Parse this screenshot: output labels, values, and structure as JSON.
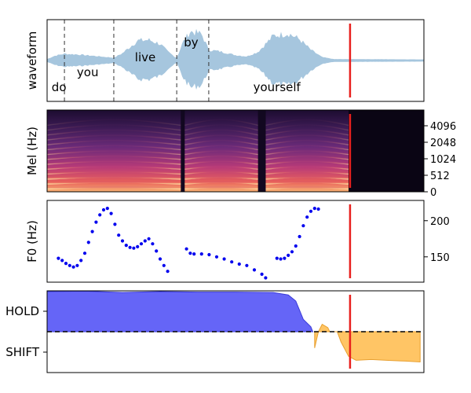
{
  "colors": {
    "waveform": "#a6c6de",
    "cursor": "#e8201e",
    "boundary": "#333333",
    "f0_points": "#0000ee",
    "hold_fill": "#6565f7",
    "hold_edge": "#3a3ad8",
    "shift_fill": "#ffc565",
    "shift_edge": "#e8a030"
  },
  "chart_data": [
    {
      "type": "area",
      "panel": "waveform",
      "ylabel": "waveform",
      "x_range": [
        0,
        1
      ],
      "words": [
        {
          "text": "do",
          "x": 0.012,
          "level": "low"
        },
        {
          "text": "you",
          "x": 0.079,
          "level": "mid"
        },
        {
          "text": "live",
          "x": 0.233,
          "level": "high"
        },
        {
          "text": "by",
          "x": 0.363,
          "level": "top"
        },
        {
          "text": "yourself",
          "x": 0.547,
          "level": "low"
        }
      ],
      "word_boundaries": [
        0.046,
        0.177,
        0.344,
        0.429
      ],
      "envelope": [
        [
          0.0,
          0.02
        ],
        [
          0.02,
          0.12
        ],
        [
          0.046,
          0.18
        ],
        [
          0.08,
          0.16
        ],
        [
          0.12,
          0.12
        ],
        [
          0.16,
          0.08
        ],
        [
          0.177,
          0.06
        ],
        [
          0.2,
          0.2
        ],
        [
          0.24,
          0.58
        ],
        [
          0.27,
          0.6
        ],
        [
          0.3,
          0.48
        ],
        [
          0.32,
          0.25
        ],
        [
          0.344,
          0.05
        ],
        [
          0.36,
          0.52
        ],
        [
          0.38,
          0.86
        ],
        [
          0.41,
          0.78
        ],
        [
          0.429,
          0.3
        ],
        [
          0.46,
          0.25
        ],
        [
          0.5,
          0.14
        ],
        [
          0.53,
          0.1
        ],
        [
          0.56,
          0.24
        ],
        [
          0.6,
          0.72
        ],
        [
          0.64,
          0.8
        ],
        [
          0.67,
          0.62
        ],
        [
          0.7,
          0.3
        ],
        [
          0.73,
          0.08
        ],
        [
          0.76,
          0.02
        ],
        [
          1.0,
          0.01
        ]
      ],
      "cursor_x": 0.804
    },
    {
      "type": "heatmap",
      "panel": "spectrogram",
      "ylabel": "Mel (Hz)",
      "x_range": [
        0,
        1
      ],
      "yticks": [
        "0",
        "512",
        "1024",
        "2048",
        "4096"
      ],
      "voiced_segments": [
        [
          0.0,
          0.355
        ],
        [
          0.365,
          0.56
        ],
        [
          0.58,
          0.8
        ]
      ],
      "cursor_x": 0.804
    },
    {
      "type": "scatter",
      "panel": "f0",
      "ylabel": "F0 (Hz)",
      "x_range": [
        0,
        1
      ],
      "y_range": [
        115,
        228
      ],
      "yticks": [
        150,
        200
      ],
      "series": [
        {
          "segment": 1,
          "points": [
            [
              0.03,
              148
            ],
            [
              0.04,
              145
            ],
            [
              0.05,
              141
            ],
            [
              0.06,
              138
            ],
            [
              0.07,
              136
            ],
            [
              0.08,
              138
            ],
            [
              0.09,
              145
            ],
            [
              0.1,
              155
            ],
            [
              0.11,
              170
            ],
            [
              0.12,
              185
            ],
            [
              0.13,
              198
            ],
            [
              0.14,
              208
            ],
            [
              0.15,
              215
            ],
            [
              0.16,
              217
            ],
            [
              0.17,
              210
            ],
            [
              0.18,
              195
            ],
            [
              0.19,
              180
            ],
            [
              0.2,
              172
            ],
            [
              0.21,
              166
            ],
            [
              0.22,
              163
            ],
            [
              0.23,
              162
            ],
            [
              0.24,
              164
            ],
            [
              0.25,
              168
            ],
            [
              0.26,
              172
            ],
            [
              0.27,
              175
            ],
            [
              0.28,
              168
            ],
            [
              0.29,
              158
            ],
            [
              0.3,
              147
            ],
            [
              0.31,
              138
            ],
            [
              0.32,
              130
            ]
          ]
        },
        {
          "segment": 2,
          "points": [
            [
              0.37,
              161
            ],
            [
              0.38,
              155
            ],
            [
              0.39,
              154
            ],
            [
              0.41,
              154
            ],
            [
              0.43,
              153
            ],
            [
              0.45,
              150
            ],
            [
              0.47,
              147
            ],
            [
              0.49,
              143
            ],
            [
              0.51,
              140
            ],
            [
              0.53,
              138
            ],
            [
              0.55,
              132
            ],
            [
              0.57,
              126
            ],
            [
              0.58,
              121
            ]
          ]
        },
        {
          "segment": 3,
          "points": [
            [
              0.61,
              148
            ],
            [
              0.62,
              147
            ],
            [
              0.63,
              148
            ],
            [
              0.64,
              152
            ],
            [
              0.65,
              157
            ],
            [
              0.66,
              165
            ],
            [
              0.67,
              178
            ],
            [
              0.68,
              193
            ],
            [
              0.69,
              205
            ],
            [
              0.7,
              213
            ],
            [
              0.71,
              217
            ],
            [
              0.72,
              216
            ]
          ]
        }
      ],
      "cursor_x": 0.804
    },
    {
      "type": "area",
      "panel": "turn",
      "x_range": [
        0,
        1
      ],
      "categories": [
        "HOLD",
        "SHIFT"
      ],
      "y_range": [
        -1.0,
        1.0
      ],
      "threshold": 0.0,
      "hold_area": [
        [
          0.0,
          0.98
        ],
        [
          0.1,
          0.99
        ],
        [
          0.2,
          0.96
        ],
        [
          0.3,
          0.98
        ],
        [
          0.4,
          0.97
        ],
        [
          0.5,
          0.97
        ],
        [
          0.6,
          0.96
        ],
        [
          0.64,
          0.9
        ],
        [
          0.66,
          0.75
        ],
        [
          0.68,
          0.3
        ],
        [
          0.7,
          0.12
        ],
        [
          0.705,
          0.0
        ]
      ],
      "shift_area": [
        [
          0.71,
          -0.4
        ],
        [
          0.72,
          0.0
        ],
        [
          0.73,
          0.18
        ],
        [
          0.745,
          0.1
        ],
        [
          0.75,
          0.0
        ],
        [
          0.77,
          0.0
        ],
        [
          0.78,
          -0.25
        ],
        [
          0.8,
          -0.6
        ],
        [
          0.82,
          -0.7
        ],
        [
          0.86,
          -0.68
        ],
        [
          0.9,
          -0.7
        ],
        [
          0.95,
          -0.72
        ],
        [
          0.99,
          -0.74
        ]
      ],
      "cursor_x": 0.804
    }
  ]
}
